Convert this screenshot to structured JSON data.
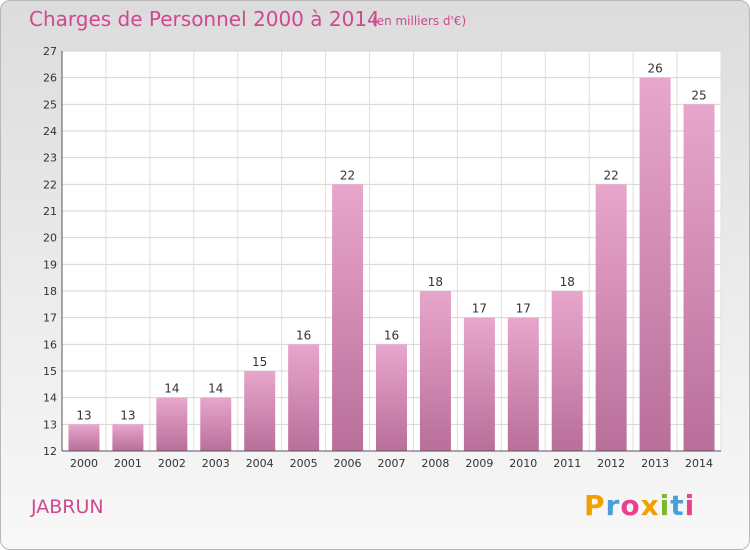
{
  "header": {
    "title": "Charges de Personnel 2000 à 2014",
    "subtitle": "(en milliers d'€)"
  },
  "footer": {
    "commune": "JABRUN",
    "logo": [
      "P",
      "r",
      "o",
      "x",
      "i",
      "t",
      "i"
    ]
  },
  "colors": {
    "text_accent": "#d0488f",
    "bar_light": "#e8a6cc",
    "bar_dark": "#b86f9a",
    "logo": [
      "#f2a000",
      "#4c9ed9",
      "#e94190",
      "#f2a000",
      "#7ab929",
      "#4c9ed9",
      "#e94190"
    ]
  },
  "chart_data": {
    "type": "bar",
    "title": "Charges de Personnel 2000 à 2014",
    "subtitle": "(en milliers d'€)",
    "categories": [
      "2000",
      "2001",
      "2002",
      "2003",
      "2004",
      "2005",
      "2006",
      "2007",
      "2008",
      "2009",
      "2010",
      "2011",
      "2012",
      "2013",
      "2014"
    ],
    "values": [
      13,
      13,
      14,
      14,
      15,
      16,
      22,
      16,
      18,
      17,
      17,
      18,
      22,
      26,
      25
    ],
    "ylim": [
      12,
      27
    ],
    "yticks": [
      12,
      13,
      14,
      15,
      16,
      17,
      18,
      19,
      20,
      21,
      22,
      23,
      24,
      25,
      26,
      27
    ],
    "grid": true,
    "legend": "none"
  }
}
